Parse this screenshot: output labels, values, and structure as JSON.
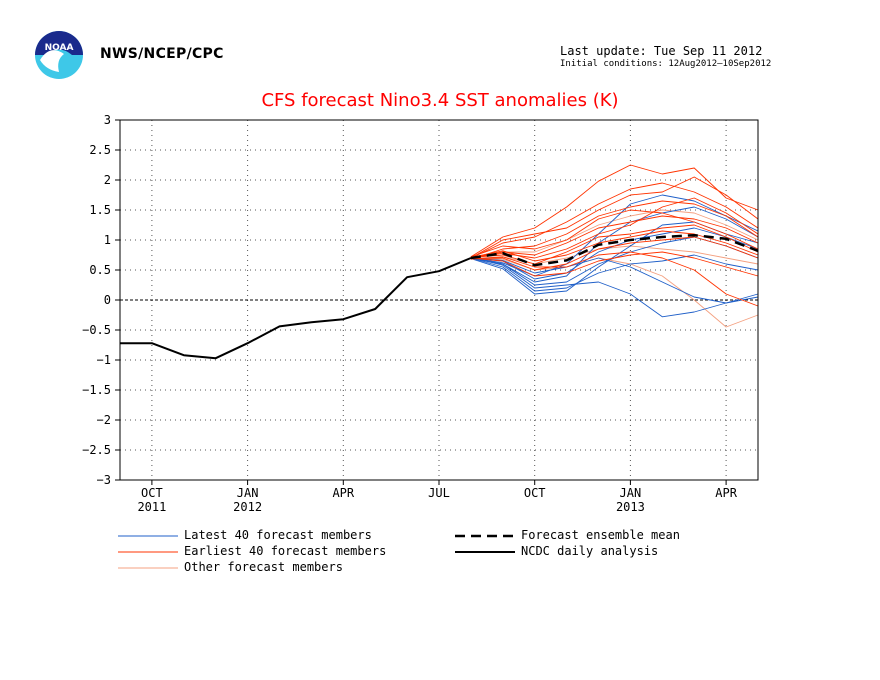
{
  "header": {
    "agency": "NWS/NCEP/CPC",
    "last_update": "Last update: Tue Sep 11 2012",
    "initial_conditions": "Initial conditions: 12Aug2012–10Sep2012"
  },
  "colors": {
    "latest": "#1f5fc8",
    "earliest": "#ff3300",
    "other": "#f4a080",
    "mean": "#000000",
    "analysis": "#000000",
    "title": "#ff0000"
  },
  "legend": [
    {
      "label": "Latest 40 forecast members",
      "style": "latest"
    },
    {
      "label": "Earliest 40 forecast members",
      "style": "earliest"
    },
    {
      "label": "Other forecast members",
      "style": "other"
    },
    {
      "label": "Forecast ensemble mean",
      "style": "mean"
    },
    {
      "label": "NCDC daily analysis",
      "style": "analysis"
    }
  ],
  "chart_data": {
    "type": "line",
    "title": "CFS forecast Nino3.4 SST anomalies (K)",
    "xlabel": "",
    "ylabel": "",
    "ylim": [
      -3,
      3
    ],
    "xlim": [
      "2011-09",
      "2013-05"
    ],
    "y_ticks": [
      "3",
      "2.5",
      "2",
      "1.5",
      "1",
      "0.5",
      "0",
      "−0.5",
      "−1",
      "−1.5",
      "−2",
      "−2.5",
      "−3"
    ],
    "x_ticks": [
      {
        "label": "OCT",
        "year": "2011",
        "date": "2011-10"
      },
      {
        "label": "JAN",
        "year": "2012",
        "date": "2012-01"
      },
      {
        "label": "APR",
        "year": "",
        "date": "2012-04"
      },
      {
        "label": "JUL",
        "year": "",
        "date": "2012-07"
      },
      {
        "label": "OCT",
        "year": "",
        "date": "2012-10"
      },
      {
        "label": "JAN",
        "year": "2013",
        "date": "2013-01"
      },
      {
        "label": "APR",
        "year": "",
        "date": "2013-04"
      }
    ],
    "grid": "dotted",
    "zero_line": true,
    "series": [
      {
        "name": "NCDC daily analysis",
        "style": "analysis",
        "x": [
          "2011-09",
          "2011-10",
          "2011-11",
          "2011-12",
          "2012-01",
          "2012-02",
          "2012-03",
          "2012-04",
          "2012-05",
          "2012-06",
          "2012-07",
          "2012-08"
        ],
        "y": [
          -0.72,
          -0.72,
          -0.92,
          -0.97,
          -0.72,
          -0.44,
          -0.37,
          -0.32,
          -0.15,
          0.38,
          0.48,
          0.7
        ]
      },
      {
        "name": "Forecast ensemble mean",
        "style": "mean",
        "x": [
          "2012-08",
          "2012-09",
          "2012-10",
          "2012-11",
          "2012-12",
          "2013-01",
          "2013-02",
          "2013-03",
          "2013-04",
          "2013-05"
        ],
        "y": [
          0.7,
          0.78,
          0.58,
          0.66,
          0.92,
          1.0,
          1.05,
          1.08,
          1.02,
          0.82
        ]
      },
      {
        "style": "earliest",
        "x": [
          "2012-08",
          "2012-09",
          "2012-10",
          "2012-11",
          "2012-12",
          "2013-01",
          "2013-02",
          "2013-03",
          "2013-04",
          "2013-05"
        ],
        "y": [
          0.72,
          1.05,
          1.2,
          1.55,
          1.98,
          2.25,
          2.1,
          2.2,
          1.7,
          1.5
        ]
      },
      {
        "style": "earliest",
        "x": [
          "2012-08",
          "2012-09",
          "2012-10",
          "2012-11",
          "2012-12",
          "2013-01",
          "2013-02",
          "2013-03",
          "2013-04",
          "2013-05"
        ],
        "y": [
          0.7,
          0.95,
          1.05,
          1.3,
          1.6,
          1.85,
          1.95,
          1.8,
          1.55,
          1.2
        ]
      },
      {
        "style": "earliest",
        "x": [
          "2012-08",
          "2012-09",
          "2012-10",
          "2012-11",
          "2012-12",
          "2013-01",
          "2013-02",
          "2013-03",
          "2013-04",
          "2013-05"
        ],
        "y": [
          0.68,
          0.85,
          0.9,
          1.1,
          1.4,
          1.55,
          1.65,
          1.6,
          1.4,
          1.05
        ]
      },
      {
        "style": "earliest",
        "x": [
          "2012-08",
          "2012-09",
          "2012-10",
          "2012-11",
          "2012-12",
          "2013-01",
          "2013-02",
          "2013-03",
          "2013-04",
          "2013-05"
        ],
        "y": [
          0.7,
          0.8,
          0.75,
          0.95,
          1.2,
          1.3,
          1.4,
          1.35,
          1.2,
          0.95
        ]
      },
      {
        "style": "earliest",
        "x": [
          "2012-08",
          "2012-09",
          "2012-10",
          "2012-11",
          "2012-12",
          "2013-01",
          "2013-02",
          "2013-03",
          "2013-04",
          "2013-05"
        ],
        "y": [
          0.71,
          0.75,
          0.6,
          0.8,
          1.05,
          1.1,
          1.2,
          1.25,
          1.05,
          0.8
        ]
      },
      {
        "style": "earliest",
        "x": [
          "2012-08",
          "2012-09",
          "2012-10",
          "2012-11",
          "2012-12",
          "2013-01",
          "2013-02",
          "2013-03",
          "2013-04",
          "2013-05"
        ],
        "y": [
          0.69,
          0.7,
          0.5,
          0.6,
          0.85,
          0.95,
          1.0,
          1.05,
          0.9,
          0.7
        ]
      },
      {
        "style": "earliest",
        "x": [
          "2012-08",
          "2012-09",
          "2012-10",
          "2012-11",
          "2012-12",
          "2013-01",
          "2013-02",
          "2013-03",
          "2013-04",
          "2013-05"
        ],
        "y": [
          0.7,
          0.65,
          0.4,
          0.45,
          0.65,
          0.75,
          0.8,
          0.7,
          0.55,
          0.4
        ]
      },
      {
        "style": "earliest",
        "x": [
          "2012-08",
          "2012-09",
          "2012-10",
          "2012-11",
          "2012-12",
          "2013-01",
          "2013-02",
          "2013-03",
          "2013-04",
          "2013-05"
        ],
        "y": [
          0.72,
          0.9,
          0.85,
          1.0,
          1.35,
          1.5,
          1.45,
          1.3,
          1.1,
          0.85
        ]
      },
      {
        "style": "earliest",
        "x": [
          "2012-08",
          "2012-09",
          "2012-10",
          "2012-11",
          "2012-12",
          "2013-01",
          "2013-02",
          "2013-03",
          "2013-04",
          "2013-05"
        ],
        "y": [
          0.7,
          0.78,
          0.7,
          0.85,
          1.1,
          1.25,
          1.55,
          1.7,
          1.45,
          1.1
        ]
      },
      {
        "style": "earliest",
        "x": [
          "2012-08",
          "2012-09",
          "2012-10",
          "2012-11",
          "2012-12",
          "2013-01",
          "2013-02",
          "2013-03",
          "2013-04",
          "2013-05"
        ],
        "y": [
          0.68,
          0.72,
          0.55,
          0.55,
          0.75,
          0.8,
          0.7,
          0.5,
          0.1,
          -0.1
        ]
      },
      {
        "style": "earliest",
        "x": [
          "2012-08",
          "2012-09",
          "2012-10",
          "2012-11",
          "2012-12",
          "2013-01",
          "2013-02",
          "2013-03",
          "2013-04",
          "2013-05"
        ],
        "y": [
          0.7,
          1.0,
          1.1,
          1.2,
          1.5,
          1.75,
          1.8,
          2.05,
          1.75,
          1.35
        ]
      },
      {
        "style": "earliest",
        "x": [
          "2012-08",
          "2012-09",
          "2012-10",
          "2012-11",
          "2012-12",
          "2013-01",
          "2013-02",
          "2013-03",
          "2013-04",
          "2013-05"
        ],
        "y": [
          0.71,
          0.82,
          0.65,
          0.75,
          0.95,
          1.05,
          1.15,
          1.1,
          0.95,
          0.75
        ]
      },
      {
        "style": "latest",
        "x": [
          "2012-08",
          "2012-09",
          "2012-10",
          "2012-11",
          "2012-12",
          "2013-01",
          "2013-02",
          "2013-03",
          "2013-04",
          "2013-05"
        ],
        "y": [
          0.7,
          0.55,
          0.15,
          0.2,
          0.45,
          0.6,
          0.65,
          0.75,
          0.6,
          0.5
        ]
      },
      {
        "style": "latest",
        "x": [
          "2012-08",
          "2012-09",
          "2012-10",
          "2012-11",
          "2012-12",
          "2013-01",
          "2013-02",
          "2013-03",
          "2013-04",
          "2013-05"
        ],
        "y": [
          0.69,
          0.6,
          0.25,
          0.3,
          0.6,
          0.8,
          0.95,
          1.05,
          0.9,
          0.7
        ]
      },
      {
        "style": "latest",
        "x": [
          "2012-08",
          "2012-09",
          "2012-10",
          "2012-11",
          "2012-12",
          "2013-01",
          "2013-02",
          "2013-03",
          "2013-04",
          "2013-05"
        ],
        "y": [
          0.7,
          0.65,
          0.35,
          0.45,
          0.8,
          1.0,
          1.1,
          1.2,
          1.05,
          0.85
        ]
      },
      {
        "style": "latest",
        "x": [
          "2012-08",
          "2012-09",
          "2012-10",
          "2012-11",
          "2012-12",
          "2013-01",
          "2013-02",
          "2013-03",
          "2013-04",
          "2013-05"
        ],
        "y": [
          0.71,
          0.58,
          0.2,
          0.25,
          0.3,
          0.1,
          -0.28,
          -0.2,
          -0.05,
          0.1
        ]
      },
      {
        "style": "latest",
        "x": [
          "2012-08",
          "2012-09",
          "2012-10",
          "2012-11",
          "2012-12",
          "2013-01",
          "2013-02",
          "2013-03",
          "2013-04",
          "2013-05"
        ],
        "y": [
          0.7,
          0.62,
          0.4,
          0.6,
          1.1,
          1.6,
          1.75,
          1.65,
          1.4,
          1.15
        ]
      },
      {
        "style": "latest",
        "x": [
          "2012-08",
          "2012-09",
          "2012-10",
          "2012-11",
          "2012-12",
          "2013-01",
          "2013-02",
          "2013-03",
          "2013-04",
          "2013-05"
        ],
        "y": [
          0.69,
          0.52,
          0.1,
          0.15,
          0.55,
          0.9,
          1.25,
          1.3,
          1.1,
          0.95
        ]
      },
      {
        "style": "latest",
        "x": [
          "2012-08",
          "2012-09",
          "2012-10",
          "2012-11",
          "2012-12",
          "2013-01",
          "2013-02",
          "2013-03",
          "2013-04",
          "2013-05"
        ],
        "y": [
          0.7,
          0.66,
          0.45,
          0.55,
          0.7,
          0.55,
          0.3,
          0.05,
          -0.05,
          0.05
        ]
      },
      {
        "style": "latest",
        "x": [
          "2012-08",
          "2012-09",
          "2012-10",
          "2012-11",
          "2012-12",
          "2013-01",
          "2013-02",
          "2013-03",
          "2013-04",
          "2013-05"
        ],
        "y": [
          0.7,
          0.6,
          0.3,
          0.4,
          0.95,
          1.3,
          1.45,
          1.55,
          1.35,
          1.05
        ]
      },
      {
        "style": "other",
        "x": [
          "2012-08",
          "2012-09",
          "2012-10",
          "2012-11",
          "2012-12",
          "2013-01",
          "2013-02",
          "2013-03",
          "2013-04",
          "2013-05"
        ],
        "y": [
          0.7,
          0.68,
          0.5,
          0.55,
          0.7,
          0.6,
          0.4,
          0.0,
          -0.45,
          -0.25
        ]
      },
      {
        "style": "other",
        "x": [
          "2012-08",
          "2012-09",
          "2012-10",
          "2012-11",
          "2012-12",
          "2013-01",
          "2013-02",
          "2013-03",
          "2013-04",
          "2013-05"
        ],
        "y": [
          0.71,
          0.8,
          0.8,
          1.0,
          1.25,
          1.4,
          1.5,
          1.45,
          1.25,
          1.0
        ]
      },
      {
        "style": "other",
        "x": [
          "2012-08",
          "2012-09",
          "2012-10",
          "2012-11",
          "2012-12",
          "2013-01",
          "2013-02",
          "2013-03",
          "2013-04",
          "2013-05"
        ],
        "y": [
          0.69,
          0.72,
          0.6,
          0.7,
          0.85,
          0.9,
          0.85,
          0.8,
          0.7,
          0.6
        ]
      }
    ]
  }
}
